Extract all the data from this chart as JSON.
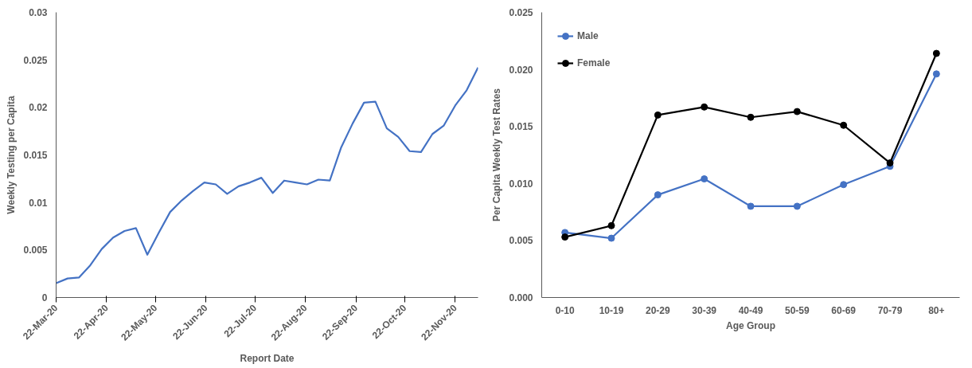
{
  "chart_data": [
    {
      "type": "line",
      "xlabel": "Report Date",
      "ylabel": "Weekly Testing per Capita",
      "x": [
        "2020-03-22",
        "2020-03-29",
        "2020-04-05",
        "2020-04-12",
        "2020-04-19",
        "2020-04-26",
        "2020-05-03",
        "2020-05-10",
        "2020-05-17",
        "2020-05-24",
        "2020-05-31",
        "2020-06-07",
        "2020-06-14",
        "2020-06-21",
        "2020-06-28",
        "2020-07-05",
        "2020-07-12",
        "2020-07-19",
        "2020-07-26",
        "2020-08-02",
        "2020-08-09",
        "2020-08-16",
        "2020-08-23",
        "2020-08-30",
        "2020-09-06",
        "2020-09-13",
        "2020-09-20",
        "2020-09-27",
        "2020-10-04",
        "2020-10-11",
        "2020-10-18",
        "2020-10-25",
        "2020-11-01",
        "2020-11-08",
        "2020-11-15",
        "2020-11-22",
        "2020-11-29",
        "2020-12-06"
      ],
      "series": [
        {
          "color": "#4472c4",
          "values": [
            0.0015,
            0.002,
            0.0021,
            0.0034,
            0.0051,
            0.0063,
            0.007,
            0.0073,
            0.0045,
            0.0068,
            0.009,
            0.0102,
            0.0112,
            0.0121,
            0.0119,
            0.0109,
            0.0117,
            0.0121,
            0.0126,
            0.011,
            0.0123,
            0.0121,
            0.0119,
            0.0124,
            0.0123,
            0.0158,
            0.0183,
            0.0205,
            0.0206,
            0.0178,
            0.0169,
            0.0154,
            0.0153,
            0.0172,
            0.0181,
            0.0202,
            0.0218,
            0.0242
          ]
        }
      ],
      "xlim": [
        "2020-03-22",
        "2020-12-06"
      ],
      "xticks": [
        {
          "value": "2020-03-22",
          "label": "22-Mar-20"
        },
        {
          "value": "2020-04-22",
          "label": "22-Apr-20"
        },
        {
          "value": "2020-05-22",
          "label": "22-May-20"
        },
        {
          "value": "2020-06-22",
          "label": "22-Jun-20"
        },
        {
          "value": "2020-07-22",
          "label": "22-Jul-20"
        },
        {
          "value": "2020-08-22",
          "label": "22-Aug-20"
        },
        {
          "value": "2020-09-22",
          "label": "22-Sep-20"
        },
        {
          "value": "2020-10-22",
          "label": "22-Oct-20"
        },
        {
          "value": "2020-11-22",
          "label": "22-Nov-20"
        }
      ],
      "ylim": [
        0,
        0.03
      ],
      "yticks": [
        0,
        0.005,
        0.01,
        0.015,
        0.02,
        0.025,
        0.03
      ],
      "grid": false,
      "legend": false,
      "marker": "none",
      "line_style": "solid"
    },
    {
      "type": "line",
      "xlabel": "Age Group",
      "ylabel": "Per Capita Weekly Test Rates",
      "categories": [
        "0-10",
        "10-19",
        "20-29",
        "30-39",
        "40-49",
        "50-59",
        "60-69",
        "70-79",
        "80+"
      ],
      "series": [
        {
          "name": "Male",
          "color": "#4472c4",
          "values": [
            0.0057,
            0.0052,
            0.009,
            0.0104,
            0.008,
            0.008,
            0.0099,
            0.0115,
            0.0196
          ]
        },
        {
          "name": "Female",
          "color": "#000000",
          "values": [
            0.0053,
            0.0063,
            0.016,
            0.0167,
            0.0158,
            0.0163,
            0.0151,
            0.0118,
            0.0214
          ]
        }
      ],
      "ylim": [
        0,
        0.025
      ],
      "yticks": [
        {
          "value": 0,
          "label": "0.000"
        },
        {
          "value": 0.005,
          "label": "0.005"
        },
        {
          "value": 0.01,
          "label": "0.010"
        },
        {
          "value": 0.015,
          "label": "0.015"
        },
        {
          "value": 0.02,
          "label": "0.020"
        },
        {
          "value": 0.025,
          "label": "0.025"
        }
      ],
      "grid": false,
      "legend": "top left",
      "marker": "circle",
      "line_style": "solid"
    }
  ]
}
